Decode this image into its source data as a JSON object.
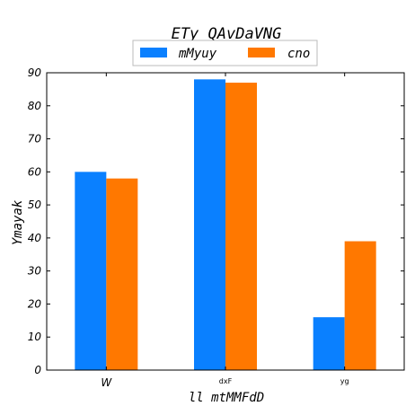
{
  "chart_data": {
    "type": "bar",
    "title": "ETy QAvDaVNG",
    "xlabel": "ll mtMMFdD",
    "ylabel": "Ymayak",
    "categories": [
      "W",
      "dxF",
      "yg"
    ],
    "series": [
      {
        "name": "mMyuy",
        "values": [
          60,
          88,
          16
        ],
        "color": "#0a80ff"
      },
      {
        "name": "cno",
        "values": [
          58,
          87,
          39
        ],
        "color": "#ff7800"
      }
    ],
    "ylim": [
      0,
      90
    ],
    "yticks": [
      "0",
      "10",
      "20",
      "30",
      "40",
      "50",
      "60",
      "70",
      "80",
      "90"
    ],
    "grid": false,
    "legend_position": "top-center"
  }
}
